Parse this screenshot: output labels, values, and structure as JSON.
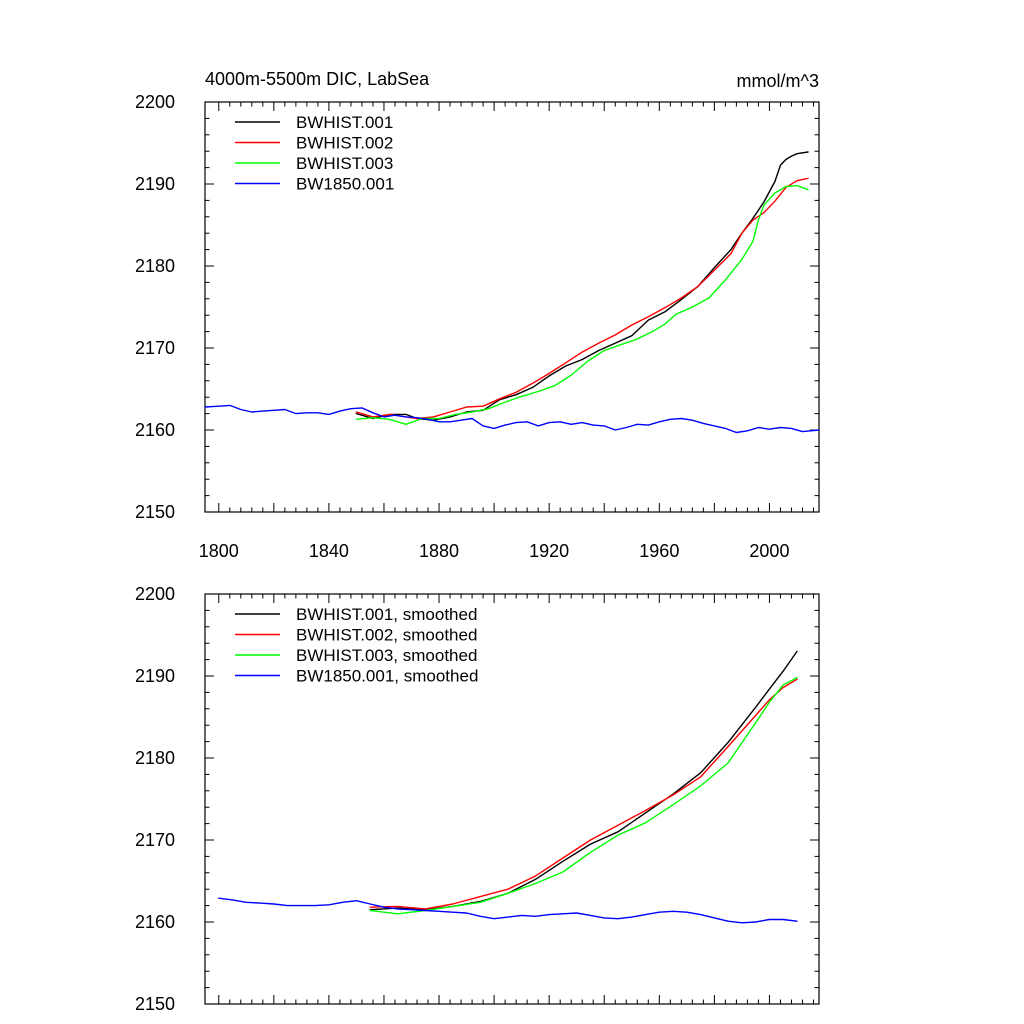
{
  "chart_data": [
    {
      "type": "line",
      "title": "4000m-5500m DIC, LabSea",
      "units_label": "mmol/m^3",
      "xlabel": "",
      "ylabel": "",
      "xlim": [
        1795,
        2018
      ],
      "ylim": [
        2150,
        2200
      ],
      "x_ticks": [
        1800,
        1840,
        1880,
        1920,
        1960,
        2000
      ],
      "y_ticks": [
        2150,
        2160,
        2170,
        2180,
        2190,
        2200
      ],
      "show_x_tick_labels": true,
      "legend_position": "top-left",
      "grid": false,
      "series": [
        {
          "name": "BWHIST.001",
          "color": "#000000",
          "x": [
            1850,
            1856,
            1862,
            1868,
            1872,
            1878,
            1884,
            1890,
            1896,
            1902,
            1908,
            1914,
            1920,
            1926,
            1932,
            1938,
            1944,
            1950,
            1956,
            1962,
            1968,
            1974,
            1980,
            1986,
            1990,
            1994,
            1998,
            2002,
            2004,
            2006,
            2008,
            2010,
            2014
          ],
          "y": [
            2162.0,
            2161.4,
            2161.9,
            2161.9,
            2161.4,
            2161.2,
            2161.6,
            2162.2,
            2162.4,
            2163.7,
            2164.3,
            2165.2,
            2166.6,
            2167.8,
            2168.6,
            2169.7,
            2170.6,
            2171.5,
            2173.4,
            2174.4,
            2175.9,
            2177.5,
            2179.8,
            2182.0,
            2184.0,
            2185.8,
            2187.8,
            2190.3,
            2192.3,
            2193.0,
            2193.4,
            2193.7,
            2193.9
          ]
        },
        {
          "name": "BWHIST.002",
          "color": "#ff0000",
          "x": [
            1850,
            1856,
            1862,
            1868,
            1872,
            1878,
            1884,
            1890,
            1896,
            1902,
            1908,
            1914,
            1920,
            1926,
            1932,
            1938,
            1944,
            1950,
            1956,
            1962,
            1968,
            1974,
            1980,
            1986,
            1990,
            1994,
            1998,
            2002,
            2006,
            2010,
            2014
          ],
          "y": [
            2162.2,
            2161.6,
            2161.9,
            2161.6,
            2161.4,
            2161.6,
            2162.2,
            2162.8,
            2162.9,
            2163.8,
            2164.6,
            2165.7,
            2166.9,
            2168.2,
            2169.5,
            2170.6,
            2171.6,
            2172.8,
            2173.8,
            2174.9,
            2176.1,
            2177.5,
            2179.5,
            2181.5,
            2184.0,
            2185.6,
            2186.5,
            2187.9,
            2189.6,
            2190.4,
            2190.7
          ]
        },
        {
          "name": "BWHIST.003",
          "color": "#00ff00",
          "x": [
            1850,
            1856,
            1862,
            1868,
            1874,
            1880,
            1886,
            1892,
            1898,
            1904,
            1910,
            1916,
            1922,
            1928,
            1934,
            1940,
            1946,
            1952,
            1958,
            1962,
            1966,
            1972,
            1978,
            1984,
            1990,
            1994,
            1996,
            1998,
            2002,
            2006,
            2010,
            2014
          ],
          "y": [
            2161.3,
            2161.5,
            2161.3,
            2160.7,
            2161.4,
            2161.4,
            2161.9,
            2162.2,
            2162.6,
            2163.4,
            2164.1,
            2164.7,
            2165.4,
            2166.7,
            2168.4,
            2169.7,
            2170.4,
            2171.1,
            2172.1,
            2172.9,
            2174.1,
            2175.0,
            2176.1,
            2178.3,
            2180.8,
            2183.0,
            2185.6,
            2187.4,
            2188.9,
            2189.7,
            2189.8,
            2189.3
          ]
        },
        {
          "name": "BW1850.001",
          "color": "#0000ff",
          "x": [
            1795,
            1800,
            1804,
            1808,
            1812,
            1816,
            1820,
            1824,
            1828,
            1832,
            1836,
            1840,
            1844,
            1848,
            1852,
            1856,
            1860,
            1864,
            1868,
            1872,
            1876,
            1880,
            1884,
            1888,
            1892,
            1896,
            1900,
            1904,
            1908,
            1912,
            1916,
            1920,
            1924,
            1928,
            1932,
            1936,
            1940,
            1944,
            1948,
            1952,
            1956,
            1960,
            1964,
            1968,
            1972,
            1976,
            1980,
            1984,
            1988,
            1992,
            1996,
            2000,
            2004,
            2008,
            2012,
            2018
          ],
          "y": [
            2162.8,
            2162.9,
            2163.0,
            2162.5,
            2162.2,
            2162.3,
            2162.4,
            2162.5,
            2162.0,
            2162.1,
            2162.1,
            2161.9,
            2162.3,
            2162.6,
            2162.7,
            2162.1,
            2161.6,
            2161.8,
            2161.6,
            2161.5,
            2161.3,
            2161.0,
            2161.0,
            2161.2,
            2161.4,
            2160.5,
            2160.2,
            2160.6,
            2160.9,
            2161.0,
            2160.5,
            2160.9,
            2161.0,
            2160.7,
            2160.9,
            2160.6,
            2160.5,
            2160.0,
            2160.3,
            2160.7,
            2160.6,
            2161.0,
            2161.3,
            2161.4,
            2161.2,
            2160.8,
            2160.5,
            2160.2,
            2159.7,
            2159.9,
            2160.3,
            2160.1,
            2160.3,
            2160.2,
            2159.8,
            2160.0
          ]
        }
      ]
    },
    {
      "type": "line",
      "title": "",
      "units_label": "",
      "xlabel": "",
      "ylabel": "",
      "xlim": [
        1795,
        2018
      ],
      "ylim": [
        2150,
        2200
      ],
      "x_ticks": [
        1800,
        1840,
        1880,
        1920,
        1960,
        2000
      ],
      "y_ticks": [
        2150,
        2160,
        2170,
        2180,
        2190,
        2200
      ],
      "show_x_tick_labels": false,
      "legend_position": "top-left",
      "grid": false,
      "series": [
        {
          "name": "BWHIST.001, smoothed",
          "color": "#000000",
          "x": [
            1855,
            1865,
            1875,
            1885,
            1895,
            1905,
            1915,
            1925,
            1935,
            1945,
            1955,
            1965,
            1975,
            1985,
            1995,
            2000,
            2005,
            2010
          ],
          "y": [
            2161.5,
            2161.7,
            2161.5,
            2161.9,
            2162.5,
            2163.5,
            2165.2,
            2167.4,
            2169.5,
            2171.0,
            2173.3,
            2175.6,
            2178.2,
            2181.9,
            2186.2,
            2188.4,
            2190.6,
            2193.0
          ]
        },
        {
          "name": "BWHIST.002, smoothed",
          "color": "#ff0000",
          "x": [
            1855,
            1865,
            1875,
            1885,
            1895,
            1905,
            1915,
            1925,
            1935,
            1945,
            1955,
            1965,
            1975,
            1985,
            1995,
            2000,
            2005,
            2010
          ],
          "y": [
            2161.8,
            2161.9,
            2161.6,
            2162.2,
            2163.1,
            2164.0,
            2165.6,
            2167.8,
            2170.0,
            2171.8,
            2173.6,
            2175.5,
            2177.7,
            2181.4,
            2185.2,
            2187.1,
            2188.6,
            2189.6
          ]
        },
        {
          "name": "BWHIST.003, smoothed",
          "color": "#00ff00",
          "x": [
            1855,
            1865,
            1875,
            1885,
            1895,
            1905,
            1915,
            1925,
            1935,
            1945,
            1955,
            1965,
            1975,
            1985,
            1995,
            2000,
            2005,
            2010
          ],
          "y": [
            2161.4,
            2161.0,
            2161.4,
            2161.9,
            2162.4,
            2163.5,
            2164.7,
            2166.1,
            2168.5,
            2170.6,
            2172.1,
            2174.3,
            2176.6,
            2179.4,
            2184.3,
            2186.8,
            2188.9,
            2189.8
          ]
        },
        {
          "name": "BW1850.001, smoothed",
          "color": "#0000ff",
          "x": [
            1800,
            1805,
            1810,
            1815,
            1820,
            1825,
            1830,
            1835,
            1840,
            1845,
            1850,
            1855,
            1860,
            1865,
            1870,
            1875,
            1880,
            1885,
            1890,
            1895,
            1900,
            1905,
            1910,
            1915,
            1920,
            1925,
            1930,
            1935,
            1940,
            1945,
            1950,
            1955,
            1960,
            1965,
            1970,
            1975,
            1980,
            1985,
            1990,
            1995,
            2000,
            2005,
            2010
          ],
          "y": [
            2162.9,
            2162.7,
            2162.4,
            2162.3,
            2162.2,
            2162.0,
            2162.0,
            2162.0,
            2162.1,
            2162.4,
            2162.6,
            2162.2,
            2161.8,
            2161.6,
            2161.5,
            2161.4,
            2161.3,
            2161.2,
            2161.1,
            2160.7,
            2160.4,
            2160.6,
            2160.8,
            2160.7,
            2160.9,
            2161.0,
            2161.1,
            2160.8,
            2160.5,
            2160.4,
            2160.6,
            2160.9,
            2161.2,
            2161.3,
            2161.2,
            2160.9,
            2160.5,
            2160.1,
            2159.9,
            2160.0,
            2160.3,
            2160.3,
            2160.1
          ]
        }
      ]
    }
  ]
}
